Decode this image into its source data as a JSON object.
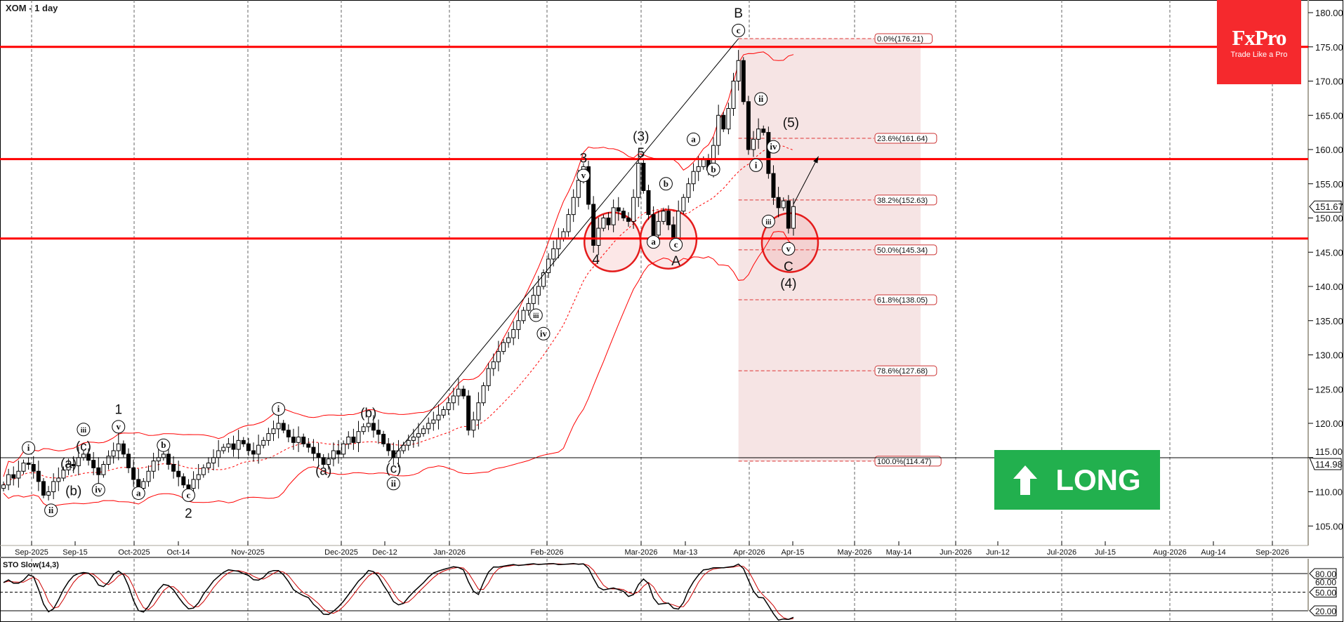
{
  "header": {
    "title": "XOM - 1 day"
  },
  "logo": {
    "brand": "FxPro",
    "tagline": "Trade Like a Pro"
  },
  "signal": {
    "label": "LONG",
    "icon": "arrow-up-icon",
    "color": "#22b04e"
  },
  "colors": {
    "levels": "#ff0000",
    "bands": "#ff0000",
    "fib_zone": "#f6e4e4",
    "up_candle": "#ffffff",
    "down_candle": "#000000"
  },
  "chart_data": {
    "type": "candlestick",
    "symbol": "XOM",
    "timeframe": "1 day",
    "ylim": [
      102,
      182
    ],
    "y_ticks": [
      "105.00",
      "110.00",
      "115.00",
      "120.00",
      "125.00",
      "130.00",
      "135.00",
      "140.00",
      "145.00",
      "150.00",
      "155.00",
      "160.00",
      "165.00",
      "170.00",
      "175.00",
      "180.00"
    ],
    "x_ticks": [
      "Sep-2025",
      "Sep-15",
      "Oct-2025",
      "Oct-14",
      "Nov-2025",
      "Dec-2025",
      "Dec-12",
      "Jan-2026",
      "Feb-2026",
      "Mar-2026",
      "Mar-13",
      "Apr-2026",
      "Apr-15",
      "May-2026",
      "May-14",
      "Jun-2026",
      "Jun-12",
      "Jul-2026",
      "Jul-15",
      "Aug-2026",
      "Aug-14",
      "Sep-2026"
    ],
    "closes": [
      111,
      112.5,
      112,
      113,
      114.2,
      114,
      113,
      111.5,
      109.5,
      110,
      111.5,
      112,
      113.2,
      114,
      113.8,
      115,
      115.5,
      114.6,
      113.5,
      112.5,
      114,
      115.2,
      116,
      117,
      115.5,
      113.5,
      111.8,
      110.5,
      111.5,
      113,
      114.5,
      115,
      115.5,
      114,
      113,
      112.2,
      111,
      110.5,
      111.8,
      112.5,
      113.5,
      114.2,
      115,
      116,
      116.5,
      117,
      116.2,
      117.5,
      117,
      116,
      115.5,
      116.8,
      117.5,
      118.5,
      119.2,
      120,
      119,
      118,
      117.2,
      118,
      117,
      116.5,
      115.6,
      115,
      114,
      114.8,
      116,
      115.5,
      117,
      118,
      117.2,
      118.8,
      119.5,
      120,
      119,
      118.4,
      117,
      116,
      115,
      116,
      116.8,
      117.5,
      118,
      118.5,
      119.2,
      120,
      120.5,
      121.2,
      122,
      123,
      124,
      125,
      124,
      119,
      120.5,
      123,
      125.5,
      128,
      129,
      130.5,
      131.8,
      132.5,
      133.7,
      135,
      136.5,
      137.5,
      138.7,
      140,
      142,
      144,
      145.5,
      147,
      148,
      150.5,
      153,
      155.5,
      157.5,
      152,
      146,
      148.5,
      150,
      149,
      151.5,
      151,
      150,
      149.5,
      153,
      158,
      154,
      150.5,
      147.5,
      149.5,
      151,
      149,
      147,
      151,
      153,
      155,
      156.8,
      157.5,
      158.5,
      157,
      160.6,
      165,
      163,
      166,
      170,
      173,
      167,
      160,
      161.5,
      163,
      162.5,
      156.5,
      153,
      151.5,
      152.5,
      148.5,
      151.67
    ],
    "last_price": "151.67",
    "horizontal_levels": [
      175.0,
      158.6,
      147.0
    ],
    "reference_line": {
      "value": 114.98,
      "label": "114.98"
    },
    "fibonacci": {
      "high": 176.21,
      "low": 114.47,
      "levels": [
        {
          "value": 176.21,
          "label": "0.0%(176.21)"
        },
        {
          "value": 161.64,
          "label": "23.6%(161.64)"
        },
        {
          "value": 152.63,
          "label": "38.2%(152.63)"
        },
        {
          "value": 145.34,
          "label": "50.0%(145.34)"
        },
        {
          "value": 138.05,
          "label": "61.8%(138.05)"
        },
        {
          "value": 127.68,
          "label": "78.6%(127.68)"
        },
        {
          "value": 114.47,
          "label": "100.0%(114.47)"
        }
      ]
    },
    "trendline": {
      "from": {
        "bar": 77,
        "price": 114.3
      },
      "to": {
        "bar": 147,
        "price": 176.2
      }
    },
    "projection_arrow": {
      "from": {
        "bar": 158,
        "price": 152
      },
      "to": {
        "bar": 163,
        "price": 159
      }
    },
    "highlight_circles": [
      {
        "bar": 121.8,
        "price": 146.5
      },
      {
        "bar": 133,
        "price": 146.9
      },
      {
        "bar": 157.3,
        "price": 146.4
      }
    ],
    "wave_labels": [
      {
        "t": "i",
        "bar": 5,
        "p": 116.4,
        "c": true
      },
      {
        "t": "ii",
        "bar": 9.5,
        "p": 107.3,
        "c": true
      },
      {
        "t": "(a)",
        "bar": 13,
        "p": 114.2,
        "c": false
      },
      {
        "t": "(b)",
        "bar": 14,
        "p": 110.2,
        "c": false
      },
      {
        "t": "(c)",
        "bar": 16,
        "p": 116.7,
        "c": false
      },
      {
        "t": "iii",
        "bar": 16,
        "p": 119.1,
        "c": true
      },
      {
        "t": "iv",
        "bar": 19,
        "p": 110.3,
        "c": true
      },
      {
        "t": "1",
        "bar": 23,
        "p": 122.1,
        "c": false
      },
      {
        "t": "v",
        "bar": 23,
        "p": 119.5,
        "c": true
      },
      {
        "t": "a",
        "bar": 27,
        "p": 109.8,
        "c": true
      },
      {
        "t": "b",
        "bar": 32,
        "p": 116.8,
        "c": true
      },
      {
        "t": "c",
        "bar": 37,
        "p": 109.5,
        "c": true
      },
      {
        "t": "2",
        "bar": 37,
        "p": 106.9,
        "c": false
      },
      {
        "t": "i",
        "bar": 55,
        "p": 122.1,
        "c": true
      },
      {
        "t": "(a)",
        "bar": 64,
        "p": 113.2,
        "c": false
      },
      {
        "t": "(b)",
        "bar": 73,
        "p": 121.6,
        "c": false
      },
      {
        "t": "(c)",
        "bar": 78,
        "p": 113.5,
        "c": false
      },
      {
        "t": "ii",
        "bar": 78,
        "p": 111.2,
        "c": true
      },
      {
        "t": "iii",
        "bar": 106.5,
        "p": 135.8,
        "c": true
      },
      {
        "t": "iv",
        "bar": 108,
        "p": 133.1,
        "c": true
      },
      {
        "t": "3",
        "bar": 116,
        "p": 158.8,
        "c": false
      },
      {
        "t": "v",
        "bar": 116,
        "p": 156.2,
        "c": true
      },
      {
        "t": "4",
        "bar": 118.5,
        "p": 144,
        "c": false
      },
      {
        "t": "(3)",
        "bar": 127.5,
        "p": 162,
        "c": false
      },
      {
        "t": "5",
        "bar": 127.5,
        "p": 159.6,
        "c": false
      },
      {
        "t": "a",
        "bar": 130,
        "p": 146.5,
        "c": true
      },
      {
        "t": "b",
        "bar": 132.5,
        "p": 155,
        "c": true
      },
      {
        "t": "c",
        "bar": 134.5,
        "p": 146.1,
        "c": true
      },
      {
        "t": "A",
        "bar": 134.5,
        "p": 143.8,
        "c": false
      },
      {
        "t": "a",
        "bar": 138,
        "p": 161.5,
        "c": true
      },
      {
        "t": "b",
        "bar": 142,
        "p": 157.1,
        "c": true
      },
      {
        "t": "c",
        "bar": 147,
        "p": 177.4,
        "c": true
      },
      {
        "t": "B",
        "bar": 147,
        "p": 180,
        "c": false
      },
      {
        "t": "ii",
        "bar": 151.5,
        "p": 167.4,
        "c": true
      },
      {
        "t": "i",
        "bar": 150.5,
        "p": 157.7,
        "c": true
      },
      {
        "t": "iv",
        "bar": 154,
        "p": 160.4,
        "c": true
      },
      {
        "t": "iii",
        "bar": 153,
        "p": 149.5,
        "c": true
      },
      {
        "t": "(5)",
        "bar": 157.5,
        "p": 164,
        "c": false
      },
      {
        "t": "v",
        "bar": 157,
        "p": 145.5,
        "c": true
      },
      {
        "t": "C",
        "bar": 157,
        "p": 143,
        "c": false
      },
      {
        "t": "(4)",
        "bar": 157,
        "p": 140.5,
        "c": false
      }
    ],
    "indicator": {
      "name": "STO Slow(14,3)",
      "levels": [
        "80.00",
        "60.00",
        "50.00",
        "20.00"
      ]
    }
  }
}
